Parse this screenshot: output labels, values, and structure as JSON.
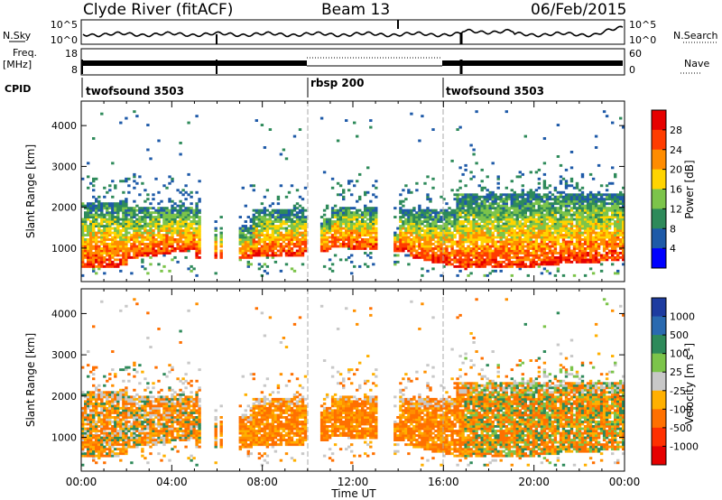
{
  "header": {
    "station": "Clyde River (fitACF)",
    "beam": "Beam 13",
    "date": "06/Feb/2015"
  },
  "left_labels": {
    "nsky": "N.Sky",
    "freq": "Freq.",
    "freq_unit": "[MHz]",
    "cpid": "CPID"
  },
  "right_labels": {
    "nsearch": "N.Search",
    "nave": "Nave"
  },
  "nsky_ticks": [
    "10^5",
    "10^0"
  ],
  "nsearch_ticks": [
    "10^5",
    "10^0"
  ],
  "freq_ticks": [
    "18",
    "8"
  ],
  "nave_ticks": [
    "60",
    "0"
  ],
  "cpid_segments": [
    {
      "label": "twofsound 3503",
      "start_h": 0.0
    },
    {
      "label": "rbsp 200",
      "start_h": 10.0
    },
    {
      "label": "twofsound 3503",
      "start_h": 16.6
    }
  ],
  "axis": {
    "xlabel": "Time UT",
    "ylabel": "Slant Range [km]"
  },
  "colors": {
    "background": "#ffffff",
    "axis": "#000000"
  },
  "chart_data": [
    {
      "type": "heatmap",
      "name": "power",
      "xlim": [
        0,
        24
      ],
      "ylim": [
        180,
        4600
      ],
      "x_ticks": [
        "00:00",
        "04:00",
        "08:00",
        "12:00",
        "16:00",
        "20:00",
        "00:00"
      ],
      "y_ticks": [
        1000,
        2000,
        3000,
        4000
      ],
      "colorbar": {
        "label": "Power [dB]",
        "ticks": [
          "4",
          "8",
          "12",
          "16",
          "20",
          "24",
          "28"
        ],
        "colors": [
          "#0000ff",
          "#1e5aa8",
          "#2e8a5a",
          "#7cc44a",
          "#ffd400",
          "#ff8c00",
          "#ff3c00",
          "#e60000"
        ]
      }
    },
    {
      "type": "heatmap",
      "name": "velocity",
      "xlim": [
        0,
        24
      ],
      "ylim": [
        180,
        4600
      ],
      "x_ticks": [
        "00:00",
        "04:00",
        "08:00",
        "12:00",
        "16:00",
        "20:00",
        "00:00"
      ],
      "y_ticks": [
        1000,
        2000,
        3000,
        4000
      ],
      "colorbar": {
        "label": "Velocity",
        "unit": "[m s",
        "unit_sup": "-1",
        "unit_close": "]",
        "ticks": [
          "1000",
          "500",
          "100",
          "25",
          "-25",
          "-100",
          "-500",
          "-1000"
        ],
        "colors": [
          "#1e3ca0",
          "#2a6ab0",
          "#2e8a5a",
          "#7cc44a",
          "#c8c8c8",
          "#ffb000",
          "#ff7000",
          "#ff3000",
          "#e60000"
        ]
      }
    }
  ]
}
